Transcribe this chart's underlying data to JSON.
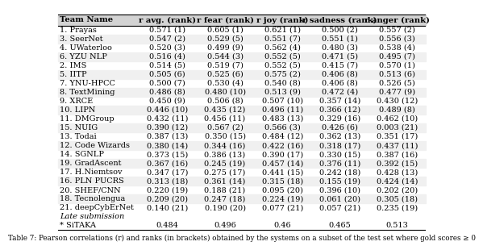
{
  "columns": [
    "Team Name",
    "r avg. (rank)",
    "r fear (rank)",
    "r joy (rank)",
    "r sadness (rank)",
    "r anger (rank)"
  ],
  "rows": [
    [
      "1. Prayas",
      "0.571 (1)",
      "0.605 (1)",
      "0.621 (1)",
      "0.500 (2)",
      "0.557 (2)"
    ],
    [
      "3. SeerNet",
      "0.547 (2)",
      "0.529 (5)",
      "0.551 (7)",
      "0.551 (1)",
      "0.556 (3)"
    ],
    [
      "4. UWaterloo",
      "0.520 (3)",
      "0.499 (9)",
      "0.562 (4)",
      "0.480 (3)",
      "0.538 (4)"
    ],
    [
      "6. YZU NLP",
      "0.516 (4)",
      "0.544 (3)",
      "0.552 (5)",
      "0.471 (5)",
      "0.495 (7)"
    ],
    [
      "2. IMS",
      "0.514 (5)",
      "0.519 (7)",
      "0.552 (5)",
      "0.415 (7)",
      "0.570 (1)"
    ],
    [
      "5. IITP",
      "0.505 (6)",
      "0.525 (6)",
      "0.575 (2)",
      "0.406 (8)",
      "0.513 (6)"
    ],
    [
      "7. YNU-HPCC",
      "0.500 (7)",
      "0.530 (4)",
      "0.540 (8)",
      "0.406 (8)",
      "0.526 (5)"
    ],
    [
      "8. TextMining",
      "0.486 (8)",
      "0.480 (10)",
      "0.513 (9)",
      "0.472 (4)",
      "0.477 (9)"
    ],
    [
      "9. XRCE",
      "0.450 (9)",
      "0.506 (8)",
      "0.507 (10)",
      "0.357 (14)",
      "0.430 (12)"
    ],
    [
      "10. LIPN",
      "0.446 (10)",
      "0.435 (12)",
      "0.496 (11)",
      "0.366 (12)",
      "0.489 (8)"
    ],
    [
      "11. DMGroup",
      "0.432 (11)",
      "0.456 (11)",
      "0.483 (13)",
      "0.329 (16)",
      "0.462 (10)"
    ],
    [
      "15. NUIG",
      "0.390 (12)",
      "0.567 (2)",
      "0.566 (3)",
      "0.426 (6)",
      "0.003 (21)"
    ],
    [
      "13. Todai",
      "0.387 (13)",
      "0.350 (15)",
      "0.484 (12)",
      "0.362 (13)",
      "0.351 (17)"
    ],
    [
      "12. Code Wizards",
      "0.380 (14)",
      "0.344 (16)",
      "0.422 (16)",
      "0.318 (17)",
      "0.437 (11)"
    ],
    [
      "14. SGNLP",
      "0.373 (15)",
      "0.386 (13)",
      "0.390 (17)",
      "0.330 (15)",
      "0.387 (16)"
    ],
    [
      "19. GradAscent",
      "0.367 (16)",
      "0.245 (19)",
      "0.457 (14)",
      "0.376 (11)",
      "0.392 (15)"
    ],
    [
      "17. H.Niemtsov",
      "0.347 (17)",
      "0.275 (17)",
      "0.441 (15)",
      "0.242 (18)",
      "0.428 (13)"
    ],
    [
      "16. PLN PUCRS",
      "0.313 (18)",
      "0.361 (14)",
      "0.315 (18)",
      "0.155 (19)",
      "0.424 (14)"
    ],
    [
      "20. SHEF/CNN",
      "0.220 (19)",
      "0.188 (21)",
      "0.095 (20)",
      "0.396 (10)",
      "0.202 (20)"
    ],
    [
      "18. Tecnolengua",
      "0.209 (20)",
      "0.247 (18)",
      "0.224 (19)",
      "0.061 (20)",
      "0.305 (18)"
    ],
    [
      "21. deepCybErNet",
      "0.140 (21)",
      "0.190 (20)",
      "0.077 (21)",
      "0.057 (21)",
      "0.235 (19)"
    ]
  ],
  "late_label": "Late submission",
  "late_rows": [
    [
      "* SiTAKA",
      "0.484",
      "0.496",
      "0.46",
      "0.465",
      "0.513"
    ]
  ],
  "header_bg": "#d3d3d3",
  "alt_row_bg": "#f0f0f0",
  "font_size": 7.0,
  "header_font_size": 7.2,
  "title": "Table 7: Pearson correlations (r) and ranks (in brackets) obtained by the systems on a subset of the test set where gold scores ≥ 0"
}
